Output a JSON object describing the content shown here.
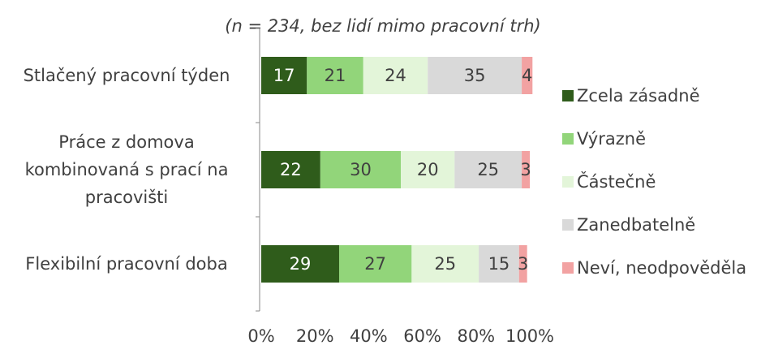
{
  "chart_data": {
    "type": "stacked-bar-horizontal",
    "subtitle": "(n = 234, bez  lidí mimo pracovní trh)",
    "categories": [
      "Stlačený pracovní týden",
      "Práce z domova kombinovaná s prací na pracovišti",
      "Flexibilní pracovní doba"
    ],
    "series": [
      {
        "name": "Zcela zásadně",
        "color": "#2f5c1b",
        "values": [
          17,
          22,
          29
        ]
      },
      {
        "name": "Výrazně",
        "color": "#92d57a",
        "values": [
          21,
          30,
          27
        ]
      },
      {
        "name": "Částečně",
        "color": "#e3f5d9",
        "values": [
          24,
          20,
          25
        ]
      },
      {
        "name": "Zanedbatelně",
        "color": "#d9d9d9",
        "values": [
          35,
          25,
          15
        ]
      },
      {
        "name": "Neví, neodpověděla",
        "color": "#f2a2a2",
        "values": [
          4,
          3,
          3
        ]
      }
    ],
    "xlim": [
      0,
      100
    ],
    "xticks": [
      {
        "value": 0,
        "label": "0%"
      },
      {
        "value": 20,
        "label": "20%"
      },
      {
        "value": 40,
        "label": "40%"
      },
      {
        "value": 60,
        "label": "60%"
      },
      {
        "value": 80,
        "label": "80%"
      },
      {
        "value": 100,
        "label": "100%"
      }
    ],
    "legend": "right"
  }
}
